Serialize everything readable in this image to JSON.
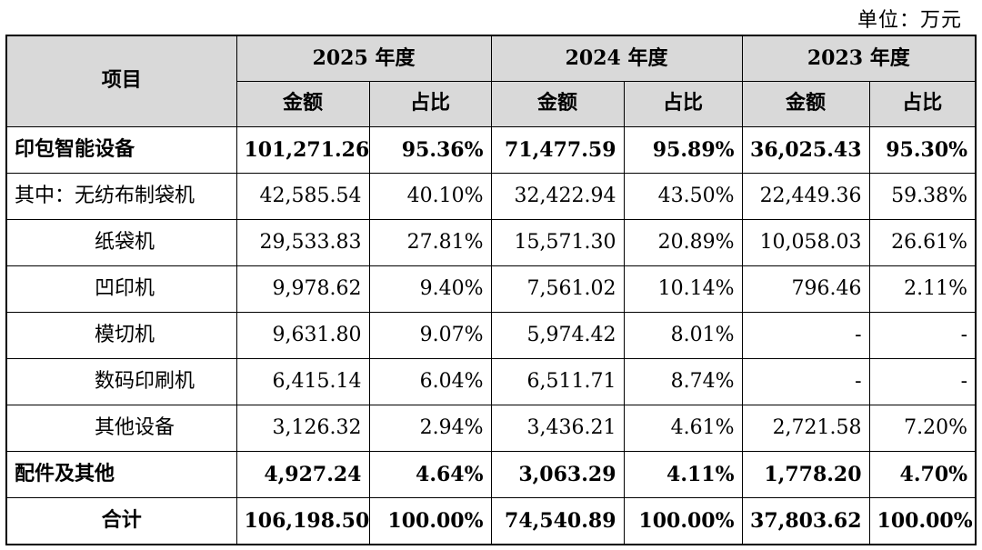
{
  "unit_label": "单位：万元",
  "header": {
    "item_label": "项目",
    "years": [
      "2025 年度",
      "2024 年度",
      "2023 年度"
    ],
    "sub_amount": "金额",
    "sub_ratio": "占比"
  },
  "rows": [
    {
      "label": "印包智能设备",
      "style": "bold",
      "values": [
        "101,271.26",
        "95.36%",
        "71,477.59",
        "95.89%",
        "36,025.43",
        "95.30%"
      ]
    },
    {
      "label": "其中：无纺布制袋机",
      "style": "normal",
      "values": [
        "42,585.54",
        "40.10%",
        "32,422.94",
        "43.50%",
        "22,449.36",
        "59.38%"
      ]
    },
    {
      "label": "纸袋机",
      "style": "indent",
      "values": [
        "29,533.83",
        "27.81%",
        "15,571.30",
        "20.89%",
        "10,058.03",
        "26.61%"
      ]
    },
    {
      "label": "凹印机",
      "style": "indent",
      "values": [
        "9,978.62",
        "9.40%",
        "7,561.02",
        "10.14%",
        "796.46",
        "2.11%"
      ]
    },
    {
      "label": "模切机",
      "style": "indent",
      "values": [
        "9,631.80",
        "9.07%",
        "5,974.42",
        "8.01%",
        "-",
        "-"
      ]
    },
    {
      "label": "数码印刷机",
      "style": "indent",
      "values": [
        "6,415.14",
        "6.04%",
        "6,511.71",
        "8.74%",
        "-",
        "-"
      ]
    },
    {
      "label": "其他设备",
      "style": "indent",
      "values": [
        "3,126.32",
        "2.94%",
        "3,436.21",
        "4.61%",
        "2,721.58",
        "7.20%"
      ]
    },
    {
      "label": "配件及其他",
      "style": "bold",
      "values": [
        "4,927.24",
        "4.64%",
        "3,063.29",
        "4.11%",
        "1,778.20",
        "4.70%"
      ]
    },
    {
      "label": "合计",
      "style": "total",
      "values": [
        "106,198.50",
        "100.00%",
        "74,540.89",
        "100.00%",
        "37,803.62",
        "100.00%"
      ]
    }
  ]
}
